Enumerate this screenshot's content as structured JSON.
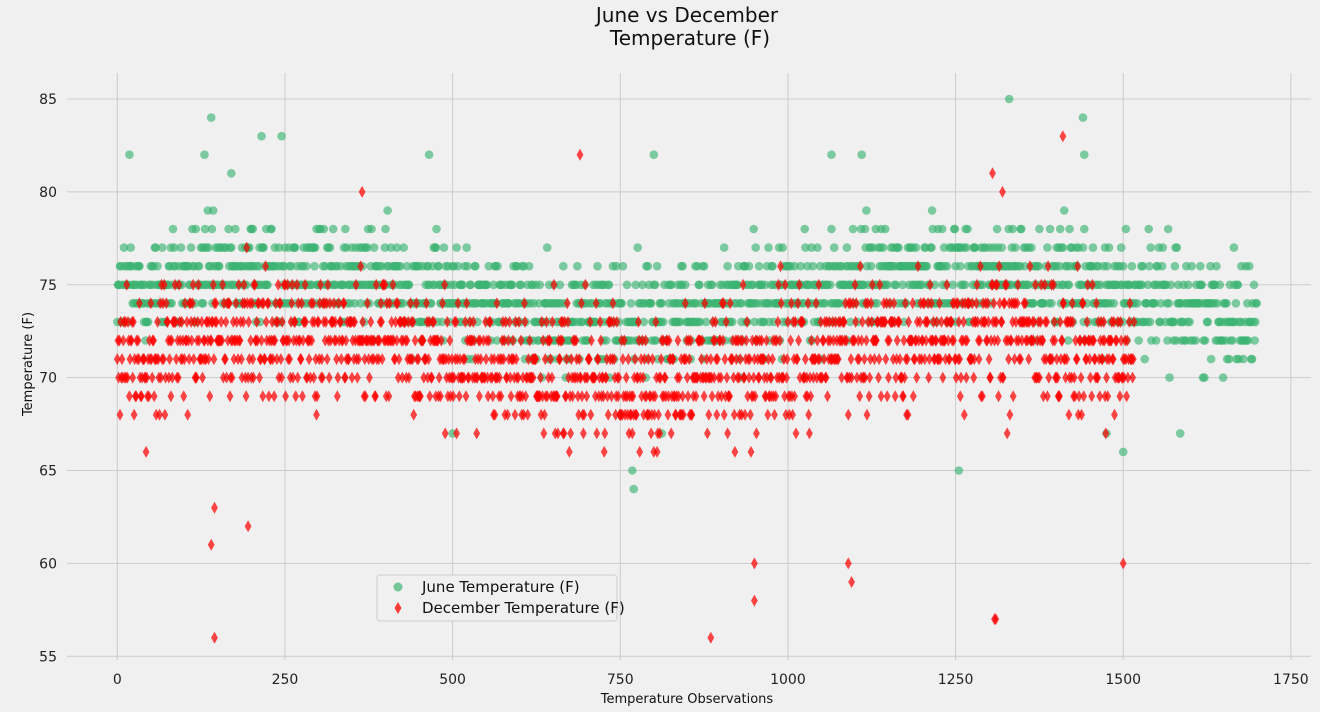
{
  "chart_data": {
    "type": "scatter",
    "title_line1": "June vs December",
    "title_line2": "Temperature (F)",
    "xlabel": "Temperature Observations",
    "ylabel": "Temperature (F)",
    "xlim": [
      -75,
      1780
    ],
    "ylim": [
      54.8,
      86.4
    ],
    "xticks": [
      0,
      250,
      500,
      750,
      1000,
      1250,
      1500,
      1750
    ],
    "yticks": [
      55,
      60,
      65,
      70,
      75,
      80,
      85
    ],
    "grid": true,
    "legend_position": "lower-center-left",
    "series": [
      {
        "name": "June Temperature (F)",
        "marker": "circle",
        "color": "#3cb371",
        "count": 1700,
        "x_range": [
          0,
          1699
        ],
        "typical_range": [
          71,
          78
        ],
        "outliers": [
          [
            18,
            82
          ],
          [
            130,
            82
          ],
          [
            140,
            84
          ],
          [
            170,
            81
          ],
          [
            215,
            83
          ],
          [
            245,
            83
          ],
          [
            465,
            82
          ],
          [
            800,
            82
          ],
          [
            1065,
            82
          ],
          [
            1110,
            82
          ],
          [
            1330,
            85
          ],
          [
            1440,
            84
          ],
          [
            1442,
            82
          ],
          [
            500,
            67
          ],
          [
            770,
            64
          ],
          [
            768,
            65
          ],
          [
            812,
            67
          ],
          [
            1255,
            65
          ],
          [
            1500,
            66
          ],
          [
            1585,
            67
          ],
          [
            1475,
            67
          ]
        ]
      },
      {
        "name": "December Temperature (F)",
        "marker": "diamond",
        "color": "#ff0000",
        "count": 1517,
        "x_range": [
          0,
          1516
        ],
        "typical_range": [
          66,
          76
        ],
        "outliers": [
          [
            145,
            56
          ],
          [
            140,
            61
          ],
          [
            145,
            63
          ],
          [
            195,
            62
          ],
          [
            885,
            56
          ],
          [
            950,
            58
          ],
          [
            950,
            60
          ],
          [
            1095,
            59
          ],
          [
            1090,
            60
          ],
          [
            1310,
            57
          ],
          [
            1308,
            57
          ],
          [
            1500,
            60
          ],
          [
            1410,
            83
          ],
          [
            690,
            82
          ],
          [
            365,
            80
          ],
          [
            1305,
            81
          ],
          [
            1320,
            80
          ]
        ]
      }
    ]
  }
}
